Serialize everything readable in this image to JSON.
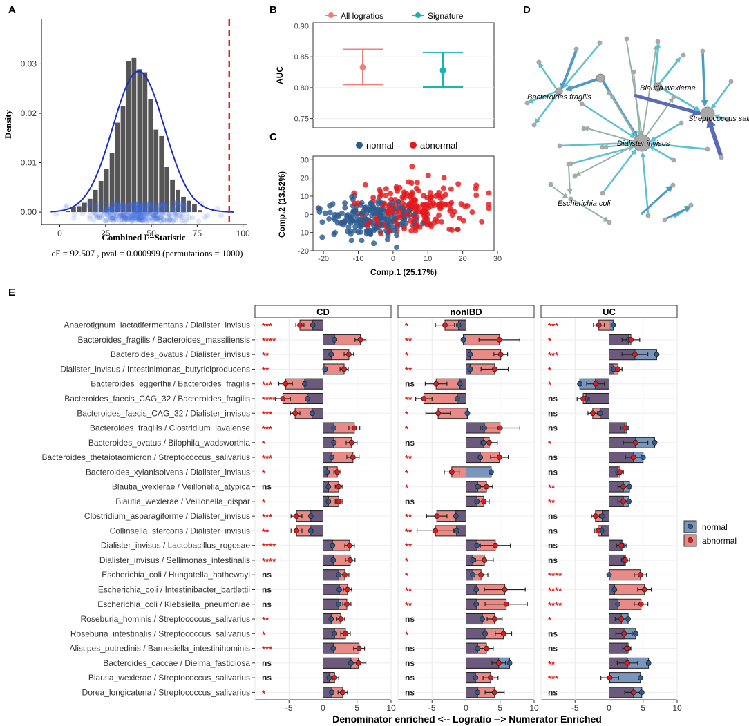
{
  "panel_labels": {
    "a": "A",
    "b": "B",
    "c": "C",
    "d": "D",
    "e": "E"
  },
  "colors": {
    "hist_bar": "#555555",
    "density_line": "#1a2fc8",
    "points": "#4169e1",
    "cutoff": "#e0201b",
    "all_logratios": "#f07f7a",
    "signature": "#1ab3b3",
    "normal": "#2c5b8f",
    "abnormal": "#e31a1c",
    "edge_dark": "#5b6ab4",
    "edge_mid": "#4b9bc4",
    "edge_light": "#5bc0d0",
    "edge_gray": "#95b3a5",
    "node": "#a9a9a9",
    "e_normal": "#7b96bd",
    "e_abnormal": "#ea8a86",
    "e_overlap": "#6b5a7b",
    "e_sig": "#d9211e"
  },
  "chart_data": [
    {
      "id": "A",
      "type": "histogram",
      "xlabel": "Combined F−Statistic",
      "ylabel": "Density",
      "xlim": [
        -10,
        102
      ],
      "ylim": [
        -0.0025,
        0.039
      ],
      "xticks": [
        "0",
        "25",
        "50",
        "75",
        "100"
      ],
      "yticks": [
        "0.00",
        "0.01",
        "0.02",
        "0.03"
      ],
      "bin_width": 3,
      "bin_starts": [
        3,
        6,
        9,
        12,
        15,
        18,
        21,
        24,
        27,
        30,
        33,
        36,
        39,
        42,
        45,
        48,
        51,
        54,
        57,
        60,
        63,
        66,
        69,
        72,
        75
      ],
      "densities": [
        0.0003,
        0.0011,
        0.0012,
        0.0019,
        0.0027,
        0.0045,
        0.0063,
        0.0087,
        0.0119,
        0.0181,
        0.0215,
        0.0305,
        0.0312,
        0.0289,
        0.0283,
        0.0228,
        0.0167,
        0.0154,
        0.0091,
        0.0066,
        0.0045,
        0.0031,
        0.0023,
        0.0016,
        0.0004
      ],
      "density_curve": {
        "mean": 43,
        "sd": 14,
        "label": "normal fit"
      },
      "cutoff": 92.5,
      "caption": "cF = 92.507 , pval = 0.000999 (permutations = 1000)"
    },
    {
      "id": "B",
      "type": "errorbar",
      "ylabel": "AUC",
      "ylim": [
        0.735,
        0.905
      ],
      "yticks": [
        "0.75",
        "0.80",
        "0.85",
        "0.90"
      ],
      "legend": [
        "All logratios",
        "Signature"
      ],
      "series": [
        {
          "name": "All logratios",
          "mean": 0.833,
          "low": 0.805,
          "high": 0.862
        },
        {
          "name": "Signature",
          "mean": 0.828,
          "low": 0.801,
          "high": 0.857
        }
      ]
    },
    {
      "id": "C",
      "type": "scatter",
      "xlabel": "Comp.1 (25.17%)",
      "ylabel": "Comp.2 (13.52%)",
      "xlim": [
        -23,
        29
      ],
      "ylim": [
        -20,
        32
      ],
      "xticks": [
        "-20",
        "-10",
        "0",
        "10",
        "20",
        "30"
      ],
      "yticks": [
        "-20",
        "-10",
        "0",
        "10",
        "20",
        "30"
      ],
      "legend": [
        "normal",
        "abnormal"
      ],
      "groups": [
        {
          "name": "normal",
          "center": [
            -7,
            -2
          ],
          "spread": [
            7,
            6
          ],
          "n": 180
        },
        {
          "name": "abnormal",
          "center": [
            7,
            3
          ],
          "spread": [
            8,
            8
          ],
          "n": 200
        }
      ]
    },
    {
      "id": "E",
      "type": "bar",
      "orientation": "horizontal",
      "xlabel": "Denominator enriched <-- Logratio --> Numerator Enriched",
      "xlim": [
        -10,
        10
      ],
      "xticks": [
        "-5",
        "0",
        "5",
        "10"
      ],
      "facets": [
        "CD",
        "nonIBD",
        "UC"
      ],
      "legend": [
        "normal",
        "abnormal"
      ],
      "categories": [
        "Anaerotignum_lactatifermentans / Dialister_invisus",
        "Bacteroides_fragilis / Bacteroides_massiliensis",
        "Bacteroides_ovatus / Dialister_invisus",
        "Dialister_invisus / Intestinimonas_butyriciproducens",
        "Bacteroides_eggerthii / Bacteroides_fragilis",
        "Bacteroides_faecis_CAG_32 / Bacteroides_fragilis",
        "Bacteroides_faecis_CAG_32 / Dialister_invisus",
        "Bacteroides_fragilis / Clostridium_lavalense",
        "Bacteroides_ovatus / Bilophila_wadsworthia",
        "Bacteroides_thetaiotaomicron / Streptococcus_salivarius",
        "Bacteroides_xylanisolvens / Dialister_invisus",
        "Blautia_wexlerae / Veillonella_atypica",
        "Blautia_wexlerae / Veillonella_dispar",
        "Clostridium_asparagiforme / Dialister_invisus",
        "Collinsella_stercoris / Dialister_invisus",
        "Dialister_invisus / Lactobacillus_rogosae",
        "Dialister_invisus / Sellimonas_intestinalis",
        "Escherichia_coli / Hungatella_hathewayi",
        "Escherichia_coli / Intestinibacter_bartlettii",
        "Escherichia_coli / Klebsiella_pneumoniae",
        "Roseburia_hominis / Streptococcus_salivarius",
        "Roseburia_intestinalis / Streptococcus_salivarius",
        "Alistipes_putredinis / Barnesiella_intestinihominis",
        "Bacteroides_caccae / Dielma_fastidiosa",
        "Blautia_wexlerae / Streptococcus_salivarius",
        "Dorea_longicatena / Streptococcus_salivarius"
      ],
      "series": [
        {
          "facet": "CD",
          "normal": [
            -1.5,
            1.7,
            1.2,
            0.3,
            -2.7,
            -2.3,
            -1.6,
            1.6,
            1.6,
            1.3,
            0.6,
            0.8,
            0.8,
            -1.8,
            -1.8,
            1.4,
            1.5,
            2.3,
            2.4,
            2.3,
            1.2,
            1.7,
            1.5,
            4.1,
            0.9,
            1.3
          ],
          "abnormal": [
            -3.4,
            5.5,
            3.8,
            3.1,
            -5.5,
            -5.9,
            -4.1,
            4.6,
            4.2,
            4.4,
            2.1,
            2.3,
            2.3,
            -3.9,
            -3.9,
            3.9,
            4.0,
            3.2,
            3.6,
            3.5,
            2.6,
            3.3,
            5.3,
            5.2,
            1.7,
            2.9
          ],
          "errors": [
            0.6,
            0.8,
            0.7,
            0.6,
            1.0,
            1.1,
            0.7,
            0.8,
            0.8,
            0.9,
            0.5,
            0.5,
            0.5,
            0.8,
            0.8,
            0.7,
            0.7,
            0.6,
            0.6,
            0.6,
            0.6,
            0.7,
            0.8,
            1.1,
            0.6,
            0.7
          ],
          "significance": [
            "***",
            "****",
            "**",
            "**",
            "***",
            "****",
            "***",
            "***",
            "*",
            "***",
            "*",
            "ns",
            "*",
            "***",
            "**",
            "****",
            "****",
            "ns",
            "ns",
            "ns",
            "**",
            "*",
            "***",
            "ns",
            "ns",
            "*"
          ]
        },
        {
          "facet": "nonIBD",
          "normal": [
            -1.1,
            -0.4,
            0.6,
            0.6,
            -0.9,
            -1.3,
            0.2,
            2.7,
            2.6,
            2.1,
            3.7,
            1.7,
            1.6,
            -1.5,
            -1.4,
            1.6,
            1.0,
            1.0,
            1.5,
            1.5,
            2.4,
            2.8,
            1.7,
            6.4,
            1.4,
            1.7
          ],
          "abnormal": [
            -3.1,
            4.9,
            5.1,
            4.2,
            -4.4,
            -6.2,
            -4.1,
            5.0,
            3.4,
            4.9,
            -2.1,
            3.0,
            2.6,
            -4.3,
            -4.5,
            4.3,
            2.7,
            2.2,
            5.7,
            5.9,
            4.2,
            5.5,
            3.0,
            4.8,
            3.6,
            4.2
          ],
          "errors": [
            1.4,
            3.0,
            1.0,
            2.0,
            1.6,
            1.2,
            1.8,
            2.9,
            1.2,
            1.3,
            1.1,
            0.9,
            0.8,
            1.5,
            2.7,
            2.2,
            1.3,
            1.0,
            3.0,
            3.1,
            1.1,
            1.2,
            1.0,
            1.0,
            1.1,
            1.4
          ],
          "significance": [
            "*",
            "**",
            "*",
            "**",
            "ns",
            "**",
            "*",
            "*",
            "ns",
            "**",
            "*",
            "*",
            "ns",
            "**",
            "**",
            "**",
            "*",
            "*",
            "**",
            "**",
            "ns",
            "*",
            "ns",
            "ns",
            "ns",
            "ns"
          ]
        },
        {
          "facet": "UC",
          "normal": [
            0.6,
            2.9,
            7.0,
            0.7,
            -4.3,
            -3.4,
            -1.3,
            2.6,
            6.7,
            5.0,
            1.3,
            3.0,
            2.9,
            -1.0,
            -1.1,
            2.0,
            2.2,
            0.0,
            0.8,
            1.3,
            2.8,
            3.9,
            2.8,
            5.8,
            4.6,
            4.8
          ],
          "abnormal": [
            -1.5,
            3.2,
            3.8,
            1.3,
            -2.0,
            -3.8,
            -2.4,
            2.3,
            3.9,
            3.6,
            1.6,
            2.1,
            2.1,
            -2.0,
            -1.6,
            1.8,
            2.4,
            4.6,
            5.2,
            4.7,
            1.8,
            2.2,
            2.6,
            2.7,
            0.1,
            3.6
          ],
          "errors": [
            0.8,
            1.3,
            1.9,
            0.6,
            1.3,
            0.9,
            0.7,
            0.6,
            1.8,
            1.2,
            0.5,
            0.8,
            0.8,
            0.6,
            0.5,
            0.7,
            0.6,
            0.9,
            1.0,
            1.0,
            0.9,
            1.2,
            0.6,
            1.5,
            1.3,
            1.3
          ],
          "significance": [
            "***",
            "*",
            "***",
            "*",
            "*",
            "ns",
            "ns",
            "ns",
            "*",
            "ns",
            "ns",
            "**",
            "**",
            "ns",
            "ns",
            "ns",
            "ns",
            "****",
            "****",
            "****",
            "*",
            "ns",
            "ns",
            "**",
            "***",
            "ns"
          ]
        }
      ]
    }
  ],
  "network": {
    "labels": {
      "bfragilis": "Bacteroides fragilis",
      "bwexlerae": "Blautia wexlerae",
      "ssalivarius": "Streptococcus salivarius",
      "dinvisus": "Dialister invisus",
      "ecoli": "Escherichia coli"
    }
  }
}
